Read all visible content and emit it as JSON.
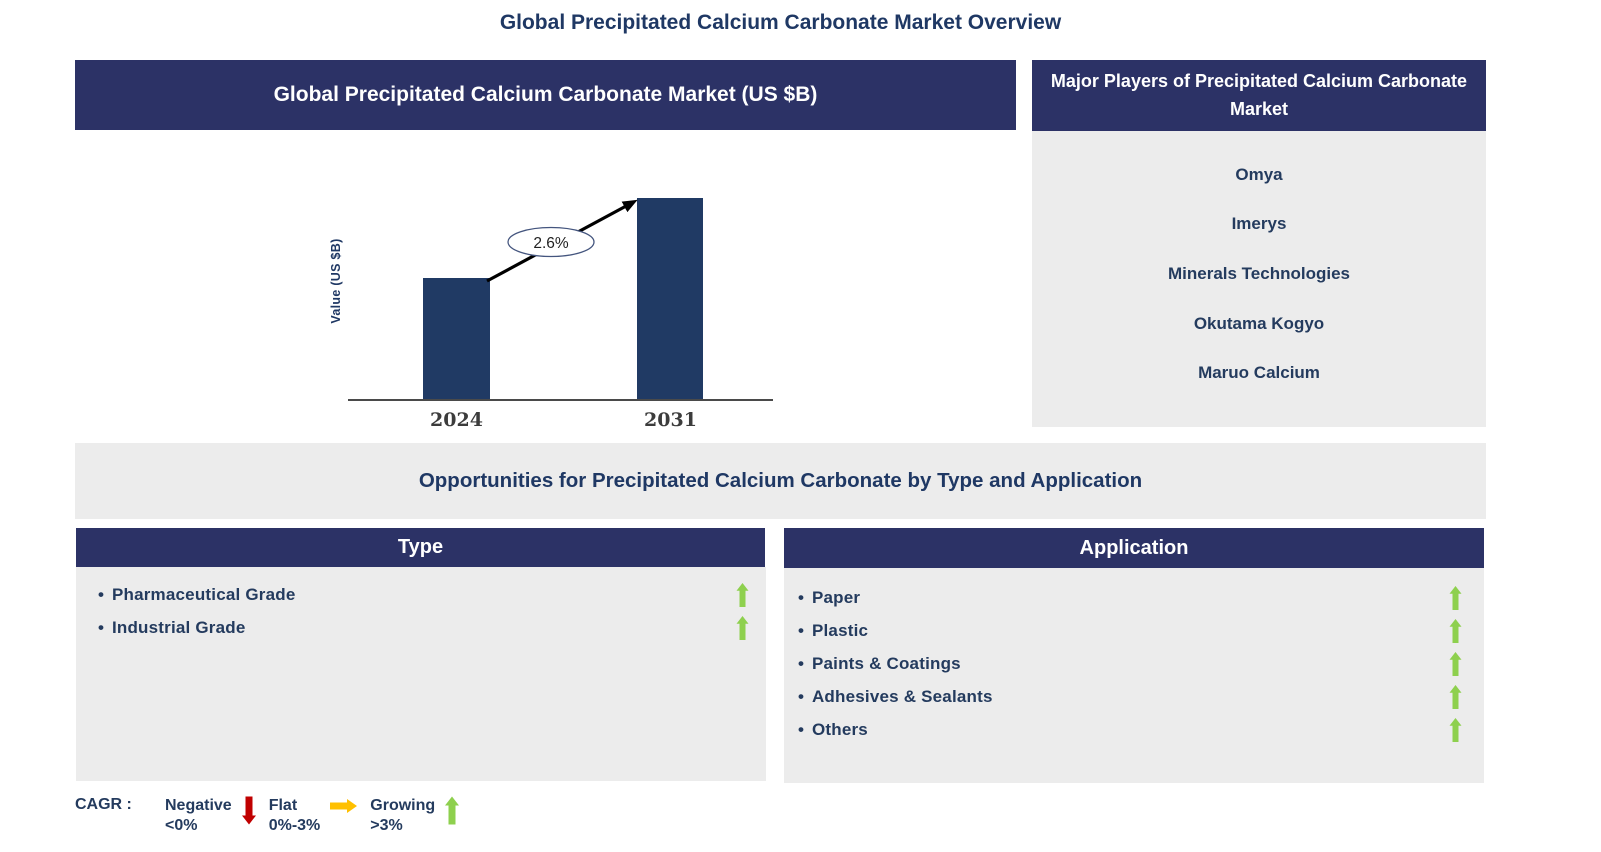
{
  "page_title": "Global Precipitated Calcium Carbonate Market Overview",
  "market_chart": {
    "header": "Global Precipitated Calcium Carbonate Market (US $B)",
    "y_axis_label": "Value (US $B)",
    "cagr_annotation": "2.6%"
  },
  "chart_data": {
    "type": "bar",
    "title": "Global Precipitated Calcium Carbonate Market (US $B)",
    "categories": [
      "2024",
      "2031"
    ],
    "values_relative": [
      0.6,
      1.0
    ],
    "value_axis": "unlabeled - only relative bar heights shown",
    "ylabel": "Value (US $B)",
    "xlabel": "",
    "annotation": "2.6%",
    "annotation_kind": "CAGR 2024 to 2031",
    "grid": false,
    "bar_color": "#203A64"
  },
  "major_players": {
    "header": "Major Players of Precipitated Calcium Carbonate Market",
    "companies": [
      "Omya",
      "Imerys",
      "Minerals Technologies",
      "Okutama Kogyo",
      "Maruo Calcium"
    ]
  },
  "opportunities": {
    "title": "Opportunities for Precipitated Calcium Carbonate by Type and Application",
    "bullet": "•",
    "type_panel": {
      "header": "Type",
      "items": [
        {
          "label": "Pharmaceutical Grade",
          "trend": "growing",
          "icon": "up-arrow-icon"
        },
        {
          "label": "Industrial Grade",
          "trend": "growing",
          "icon": "up-arrow-icon"
        }
      ]
    },
    "application_panel": {
      "header": "Application",
      "items": [
        {
          "label": "Paper",
          "trend": "growing",
          "icon": "up-arrow-icon"
        },
        {
          "label": "Plastic",
          "trend": "growing",
          "icon": "up-arrow-icon"
        },
        {
          "label": "Paints & Coatings",
          "trend": "growing",
          "icon": "up-arrow-icon"
        },
        {
          "label": "Adhesives & Sealants",
          "trend": "growing",
          "icon": "up-arrow-icon"
        },
        {
          "label": "Others",
          "trend": "growing",
          "icon": "up-arrow-icon"
        }
      ]
    }
  },
  "legend": {
    "prefix": "CAGR :",
    "items": [
      {
        "label": "Negative",
        "range": "<0%",
        "icon": "down-arrow-icon"
      },
      {
        "label": "Flat",
        "range": "0%-3%",
        "icon": "right-arrow-icon"
      },
      {
        "label": "Growing",
        "range": ">3%",
        "icon": "up-arrow-icon"
      }
    ]
  },
  "colors": {
    "header_bg": "#2C3266",
    "header_text": "#FFFFFF",
    "panel_bg": "#ECECEC",
    "bar": "#203A64",
    "title_text": "#1F3864",
    "body_text": "#243B5E",
    "axis": "#4A4A4A",
    "tick_text": "#3C3C3C",
    "negative_arrow": "#C00000",
    "flat_arrow": "#FFC000",
    "growing_arrow": "#8ED04E"
  }
}
